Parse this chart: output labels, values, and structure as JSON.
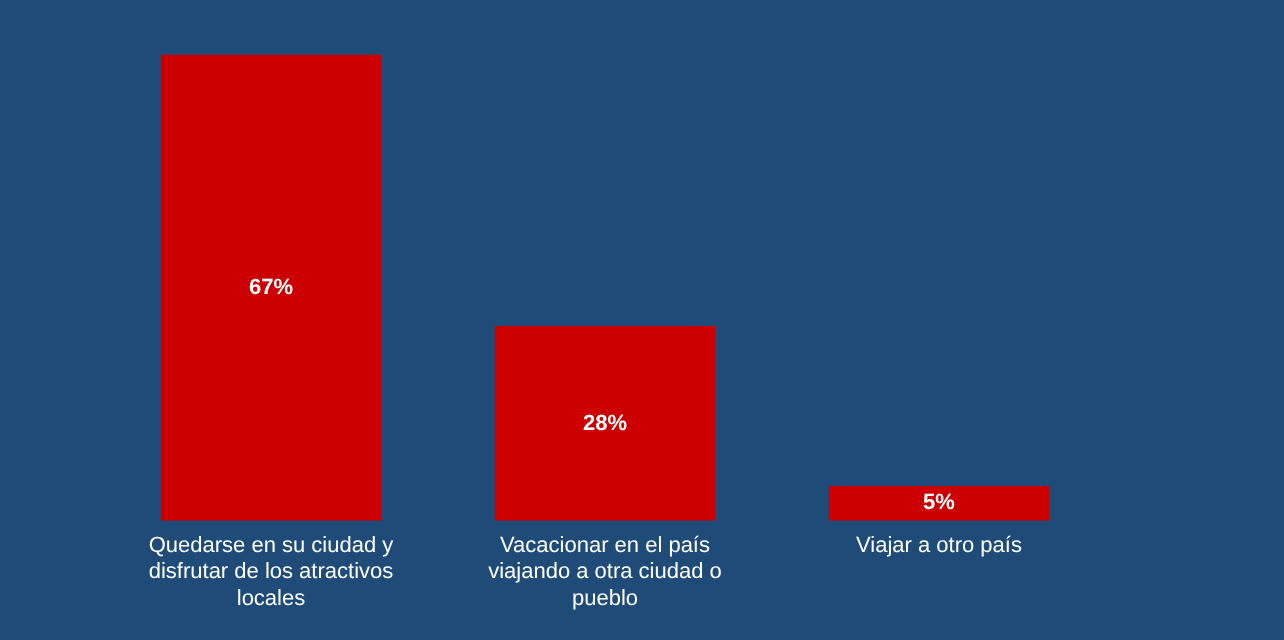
{
  "chart_data": {
    "type": "bar",
    "categories": [
      "Quedarse en su ciudad y disfrutar de los atractivos locales",
      "Vacacionar en el país viajando a otra ciudad o pueblo",
      "Viajar a otro país"
    ],
    "values": [
      67,
      28,
      5
    ],
    "value_labels": [
      "67%",
      "28%",
      "5%"
    ],
    "color": "#cc0000",
    "grid": false,
    "legend": false
  }
}
